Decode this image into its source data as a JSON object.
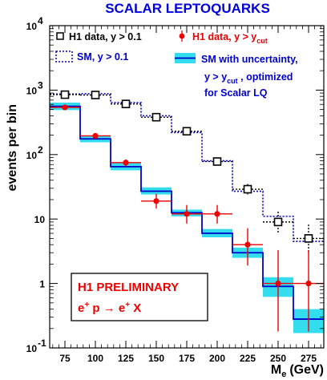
{
  "chart_data": {
    "type": "line",
    "title": "SCALAR LEPTOQUARKS",
    "xlabel": "M",
    "xlabel_sub": "e",
    "xlabel_unit": "(GeV)",
    "ylabel": "events per bin",
    "x_scale": "linear",
    "y_scale": "log",
    "xlim": [
      62.5,
      287.5
    ],
    "ylim": [
      0.1,
      10000
    ],
    "x_ticks": [
      75,
      100,
      125,
      150,
      175,
      200,
      225,
      250,
      275
    ],
    "y_ticks": [
      {
        "value": 0.1,
        "base": "10",
        "exp": "-1"
      },
      {
        "value": 1,
        "base": "1",
        "exp": ""
      },
      {
        "value": 10,
        "base": "10",
        "exp": ""
      },
      {
        "value": 100,
        "base": "10",
        "exp": "2"
      },
      {
        "value": 1000,
        "base": "10",
        "exp": "3"
      },
      {
        "value": 10000,
        "base": "10",
        "exp": "4"
      }
    ],
    "bin_edges": [
      62.5,
      87.5,
      112.5,
      137.5,
      162.5,
      187.5,
      212.5,
      237.5,
      262.5,
      287.5
    ],
    "series": [
      {
        "name": "H1 data, y > 0.1",
        "kind": "data-open-square",
        "color": "#000000",
        "x": [
          75,
          100,
          125,
          150,
          175,
          200,
          225,
          250,
          275
        ],
        "y": [
          850,
          840,
          610,
          380,
          230,
          78,
          29,
          9,
          5
        ],
        "err_low": [
          30,
          30,
          25,
          20,
          15,
          9,
          5,
          3,
          2.1
        ],
        "err_high": [
          30,
          30,
          25,
          20,
          15,
          9,
          6,
          4,
          3.2
        ]
      },
      {
        "name": "SM, y > 0.1",
        "kind": "histogram-dotted",
        "color": "#0000cc",
        "values": [
          870,
          880,
          640,
          400,
          220,
          80,
          27,
          11,
          4.5
        ]
      },
      {
        "name": "H1 data, y > y_cut",
        "kind": "data-filled-circle",
        "color": "#ee0000",
        "x": [
          75,
          100,
          125,
          150,
          175,
          200,
          225,
          250,
          275
        ],
        "y": [
          540,
          195,
          75,
          19,
          12,
          12,
          4,
          1,
          1
        ],
        "err_low": [
          25,
          14,
          9,
          4.5,
          3.5,
          3.5,
          2.1,
          0.82,
          0.82
        ],
        "err_high": [
          25,
          14,
          9,
          5.5,
          4.5,
          4.5,
          3.2,
          2.3,
          2.3
        ]
      },
      {
        "name": "SM with uncertainty, y > y_cut, optimized for Scalar LQ",
        "kind": "histogram-band",
        "color": "#0000cc",
        "band_color": "#33ddee",
        "values": [
          560,
          175,
          65,
          27,
          12.5,
          6,
          3,
          0.9,
          0.28
        ],
        "band_low": [
          490,
          155,
          57,
          24,
          11,
          5.2,
          2.5,
          0.62,
          0.17
        ],
        "band_high": [
          640,
          195,
          74,
          31,
          14,
          7,
          3.6,
          1.25,
          0.4
        ]
      }
    ],
    "legend": {
      "placement": "top",
      "entries": [
        {
          "text": "H1 data, y > 0.1",
          "color": "#000000"
        },
        {
          "text": "H1 data, y > y",
          "sub": "cut",
          "color": "#ee0000"
        },
        {
          "text": "SM, y > 0.1",
          "color": "#0000cc"
        },
        {
          "text": "SM with uncertainty,",
          "color": "#0000cc"
        },
        {
          "text": "y > y",
          "sub": "cut",
          "tail": " , optimized",
          "color": "#0000cc"
        },
        {
          "text": "for Scalar LQ",
          "color": "#0000cc"
        }
      ]
    },
    "annotations": {
      "line1": "H1 PRELIMINARY",
      "line2": {
        "e": "e",
        "sup1": "+",
        "mid": " p ",
        "arrow": "→",
        "e2": " e",
        "sup2": "+",
        "tail": " X"
      },
      "color": "#ee0000"
    }
  }
}
